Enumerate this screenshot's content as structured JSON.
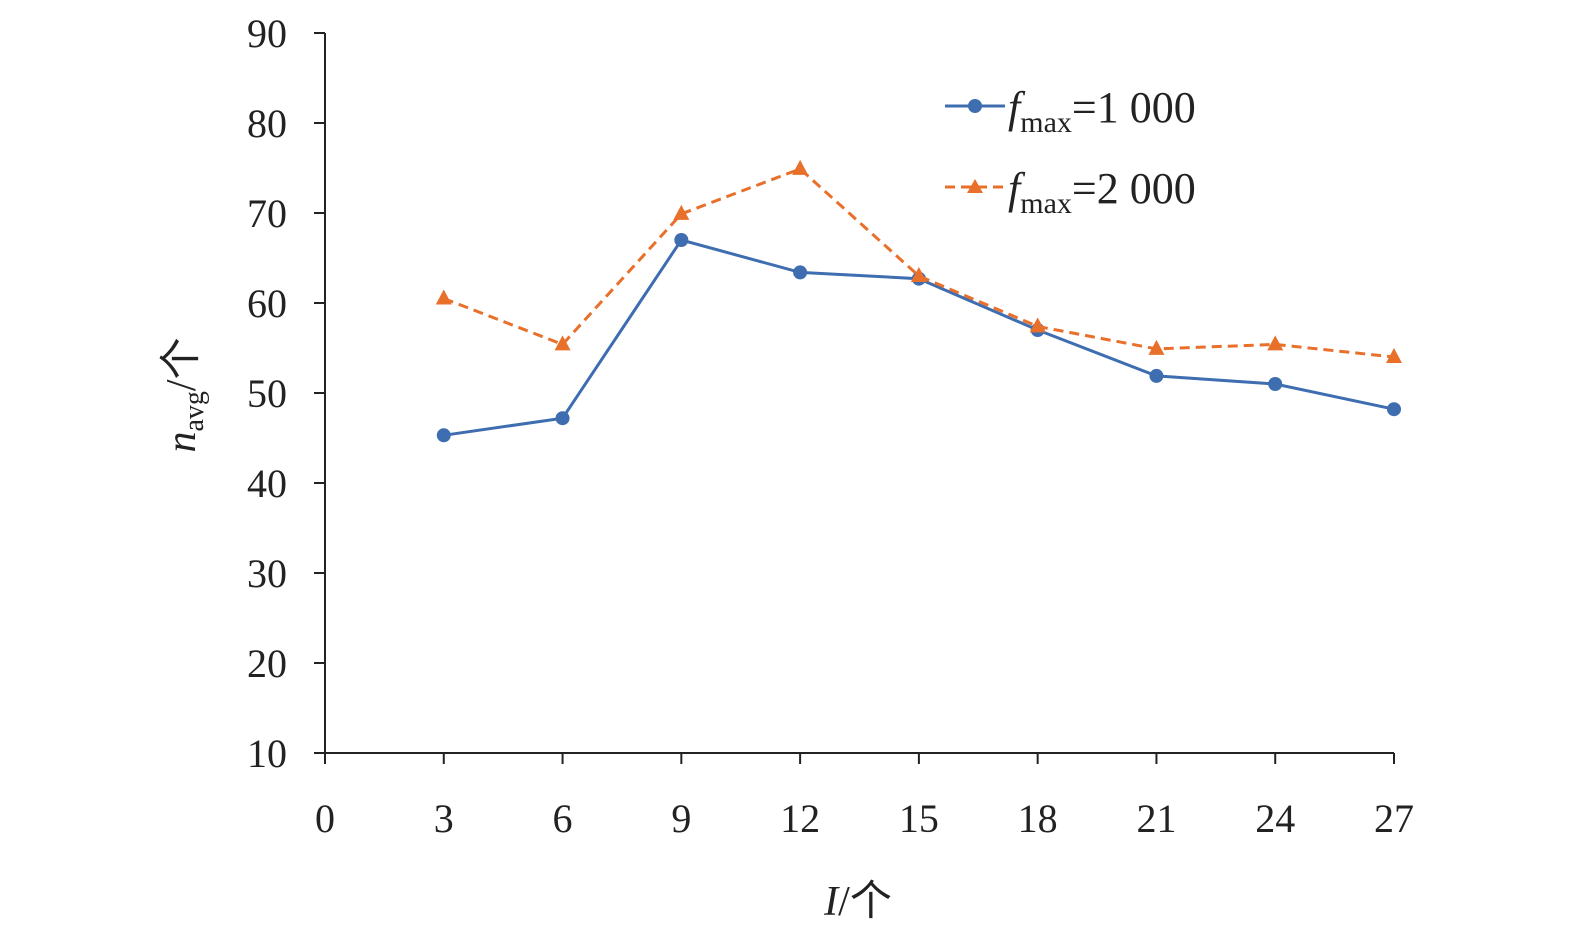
{
  "chart_data": {
    "type": "line",
    "title": "",
    "xlabel": {
      "main": "I",
      "suffix": "/个"
    },
    "ylabel": {
      "main": "n",
      "sub": "avg",
      "suffix": "/个"
    },
    "x": [
      3,
      6,
      9,
      12,
      15,
      18,
      21,
      24,
      27
    ],
    "xticks": [
      "0",
      "3",
      "6",
      "9",
      "12",
      "15",
      "18",
      "21",
      "24",
      "27"
    ],
    "xlim": [
      0,
      27
    ],
    "yticks": [
      "10",
      "20",
      "30",
      "40",
      "50",
      "60",
      "70",
      "80",
      "90"
    ],
    "ylim": [
      10,
      90
    ],
    "grid": false,
    "legend_position": "top-right",
    "series": [
      {
        "name": "f_max=1 000",
        "label_main": "f",
        "label_sub": "max",
        "label_rest": "=1 000",
        "color": "#3E6DB0",
        "marker": "circle",
        "dash": "solid",
        "values": [
          45.3,
          47.2,
          67.0,
          63.4,
          62.7,
          57.0,
          51.9,
          51.0,
          48.2
        ]
      },
      {
        "name": "f_max=2 000",
        "label_main": "f",
        "label_sub": "max",
        "label_rest": "=2 000",
        "color": "#E8702A",
        "marker": "triangle",
        "dash": "dashed",
        "values": [
          60.5,
          55.4,
          69.9,
          74.9,
          63.0,
          57.4,
          54.9,
          55.4,
          54.0
        ]
      }
    ]
  }
}
